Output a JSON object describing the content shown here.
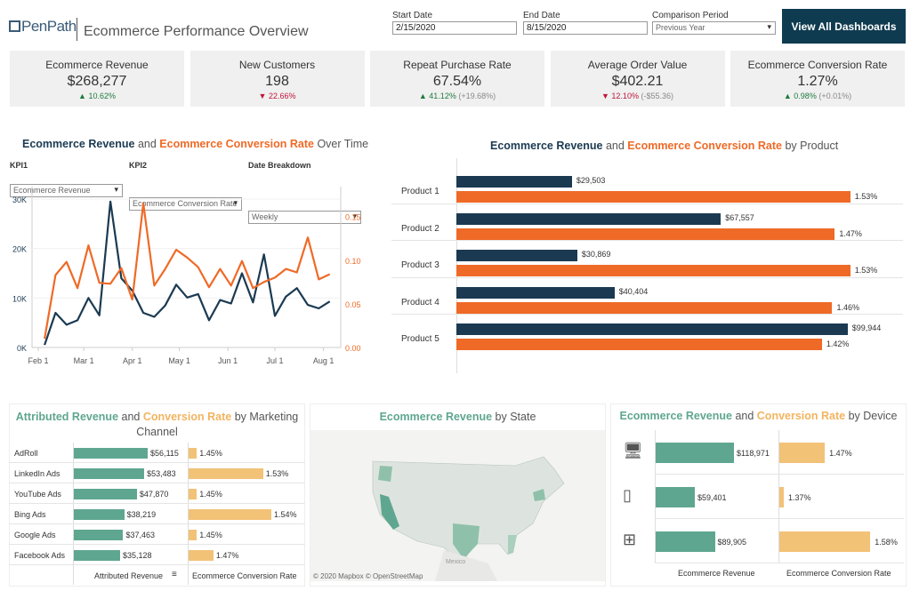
{
  "header": {
    "logo": "PenPath",
    "title": "Ecommerce Performance Overview",
    "start_date_label": "Start Date",
    "start_date": "2/15/2020",
    "end_date_label": "End Date",
    "end_date": "8/15/2020",
    "comparison_label": "Comparison Period",
    "comparison_value": "Previous Year",
    "view_all": "View All Dashboards"
  },
  "kpis": [
    {
      "title": "Ecommerce Revenue",
      "value": "$268,277",
      "delta": "10.62%",
      "extra": "",
      "dir": "up"
    },
    {
      "title": "New Customers",
      "value": "198",
      "delta": "22.66%",
      "extra": "",
      "dir": "down"
    },
    {
      "title": "Repeat Purchase Rate",
      "value": "67.54%",
      "delta": "41.12%",
      "extra": "(+19.68%)",
      "dir": "up"
    },
    {
      "title": "Average Order Value",
      "value": "$402.21",
      "delta": "12.10%",
      "extra": "(-$55.36)",
      "dir": "down"
    },
    {
      "title": "Ecommerce Conversion Rate",
      "value": "1.27%",
      "delta": "0.98%",
      "extra": "(+0.01%)",
      "dir": "up"
    }
  ],
  "colors": {
    "navy": "#1b3a52",
    "orange": "#ef6a27",
    "teal": "#5fa690",
    "gold": "#f2c277",
    "up": "#1e7b3e",
    "down": "#c0163a"
  },
  "time_chart": {
    "title_a": "Ecommerce Revenue",
    "title_and": "and",
    "title_b": "Ecommerce Conversion Rate",
    "title_c": "Over Time",
    "kpi1_label": "KPI1",
    "kpi1_value": "Ecommerce Revenue",
    "kpi2_label": "KPI2",
    "kpi2_value": "Ecommerce Conversion Rate",
    "breakdown_label": "Date Breakdown",
    "breakdown_value": "Weekly"
  },
  "product_chart": {
    "title_a": "Ecommerce Revenue",
    "title_and": "and",
    "title_b": "Ecommerce Conversion Rate",
    "title_c": "by Product"
  },
  "channel_chart": {
    "title_a": "Attributed Revenue",
    "title_and": "and",
    "title_b": "Conversion Rate",
    "title_c": "by Marketing Channel",
    "col1": "Attributed Revenue",
    "col2": "Ecommerce Conversion Rate"
  },
  "map": {
    "title_a": "Ecommerce Revenue",
    "title_c": "by State",
    "attribution": "© 2020 Mapbox © OpenStreetMap",
    "label_mexico": "Mexico"
  },
  "device_chart": {
    "title_a": "Ecommerce Revenue",
    "title_and": "and",
    "title_b": "Conversion Rate",
    "title_c": "by Device",
    "col1": "Ecommerce Revenue",
    "col2": "Ecommerce Conversion Rate"
  },
  "chart_data": [
    {
      "type": "line",
      "x_ticks": [
        "Feb 1",
        "Mar 1",
        "Apr 1",
        "May 1",
        "Jun 1",
        "Jul 1",
        "Aug 1"
      ],
      "y_left_ticks": [
        "0K",
        "10K",
        "20K",
        "30K"
      ],
      "y_right_ticks": [
        "0.00",
        "0.05",
        "0.10",
        "0.15"
      ],
      "ylim_left": [
        0,
        30000
      ],
      "ylim_right": [
        0,
        0.17
      ],
      "grid": true,
      "x": [
        "2020-02-05",
        "2020-02-12",
        "2020-02-19",
        "2020-02-26",
        "2020-03-04",
        "2020-03-11",
        "2020-03-18",
        "2020-03-25",
        "2020-04-01",
        "2020-04-08",
        "2020-04-15",
        "2020-04-22",
        "2020-04-29",
        "2020-05-06",
        "2020-05-13",
        "2020-05-20",
        "2020-05-27",
        "2020-06-03",
        "2020-06-10",
        "2020-06-17",
        "2020-06-24",
        "2020-07-01",
        "2020-07-08",
        "2020-07-15",
        "2020-07-22",
        "2020-07-29",
        "2020-08-05"
      ],
      "series": [
        {
          "name": "Ecommerce Revenue",
          "axis": "left",
          "values": [
            500,
            7000,
            4600,
            5500,
            10000,
            6500,
            29500,
            14000,
            11500,
            7000,
            6200,
            8500,
            12700,
            10100,
            10800,
            5500,
            9600,
            8900,
            15000,
            9100,
            18800,
            6400,
            10300,
            12000,
            8600,
            7900,
            9300
          ]
        },
        {
          "name": "Ecommerce Conversion Rate",
          "axis": "right",
          "values": [
            0.01,
            0.083,
            0.098,
            0.068,
            0.117,
            0.074,
            0.073,
            0.091,
            0.055,
            0.165,
            0.071,
            0.09,
            0.112,
            0.103,
            0.092,
            0.069,
            0.09,
            0.071,
            0.099,
            0.068,
            0.075,
            0.08,
            0.09,
            0.086,
            0.126,
            0.078,
            0.084
          ]
        }
      ]
    },
    {
      "type": "bar",
      "categories": [
        "Product 1",
        "Product 2",
        "Product 3",
        "Product 4",
        "Product 5"
      ],
      "series": [
        {
          "name": "Ecommerce Revenue",
          "values": [
            29503,
            67557,
            30869,
            40404,
            99944
          ],
          "labels": [
            "$29,503",
            "$67,557",
            "$30,869",
            "$40,404",
            "$99,944"
          ]
        },
        {
          "name": "Ecommerce Conversion Rate",
          "values": [
            1.53,
            1.47,
            1.53,
            1.46,
            1.42
          ],
          "labels": [
            "1.53%",
            "1.47%",
            "1.53%",
            "1.46%",
            "1.42%"
          ]
        }
      ]
    },
    {
      "type": "bar",
      "categories": [
        "AdRoll",
        "LinkedIn Ads",
        "YouTube Ads",
        "Bing Ads",
        "Google Ads",
        "Facebook Ads"
      ],
      "series": [
        {
          "name": "Attributed Revenue",
          "values": [
            56115,
            53483,
            47870,
            38219,
            37463,
            35128
          ],
          "labels": [
            "$56,115",
            "$53,483",
            "$47,870",
            "$38,219",
            "$37,463",
            "$35,128"
          ]
        },
        {
          "name": "Ecommerce Conversion Rate",
          "values": [
            1.45,
            1.53,
            1.45,
            1.54,
            1.45,
            1.47
          ],
          "labels": [
            "1.45%",
            "1.53%",
            "1.45%",
            "1.54%",
            "1.45%",
            "1.47%"
          ]
        }
      ]
    },
    {
      "type": "bar",
      "categories": [
        "desktop-icon",
        "mobile-icon",
        "tablet-icon"
      ],
      "series": [
        {
          "name": "Ecommerce Revenue",
          "values": [
            118971,
            59401,
            89905
          ],
          "labels": [
            "$118,971",
            "$59,401",
            "$89,905"
          ]
        },
        {
          "name": "Ecommerce Conversion Rate",
          "values": [
            1.47,
            1.37,
            1.58
          ],
          "labels": [
            "1.47%",
            "1.37%",
            "1.58%"
          ]
        }
      ]
    }
  ]
}
